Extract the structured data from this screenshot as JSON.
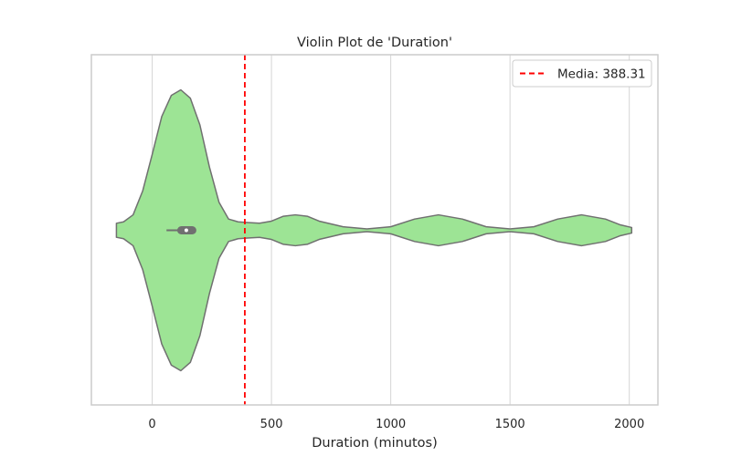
{
  "chart_data": {
    "type": "violin",
    "title": "Violin Plot de 'Duration'",
    "xlabel": "Duration (minutos)",
    "ylabel": "",
    "xlim": [
      -255,
      2120
    ],
    "xticks": [
      0,
      500,
      1000,
      1500,
      2000
    ],
    "xtick_labels": [
      "0",
      "500",
      "1000",
      "1500",
      "2000"
    ],
    "grid": "vertical",
    "legend_position": "top-right",
    "mean": {
      "value": 388.31,
      "label": "Media: 388.31",
      "color": "#ff0000",
      "style": "dashed"
    },
    "violin": {
      "fill_color": "#9de495",
      "edge_color": "#707070",
      "range": [
        -150,
        2010
      ],
      "density_profile": [
        [
          -150,
          0.05
        ],
        [
          -120,
          0.06
        ],
        [
          -80,
          0.11
        ],
        [
          -40,
          0.28
        ],
        [
          0,
          0.54
        ],
        [
          40,
          0.81
        ],
        [
          80,
          0.96
        ],
        [
          120,
          1.0
        ],
        [
          160,
          0.94
        ],
        [
          200,
          0.75
        ],
        [
          240,
          0.45
        ],
        [
          280,
          0.2
        ],
        [
          320,
          0.08
        ],
        [
          360,
          0.06
        ],
        [
          400,
          0.055
        ],
        [
          450,
          0.05
        ],
        [
          500,
          0.065
        ],
        [
          550,
          0.1
        ],
        [
          600,
          0.11
        ],
        [
          650,
          0.1
        ],
        [
          700,
          0.065
        ],
        [
          800,
          0.025
        ],
        [
          900,
          0.01
        ],
        [
          1000,
          0.025
        ],
        [
          1100,
          0.08
        ],
        [
          1200,
          0.11
        ],
        [
          1300,
          0.08
        ],
        [
          1400,
          0.025
        ],
        [
          1500,
          0.01
        ],
        [
          1600,
          0.025
        ],
        [
          1700,
          0.08
        ],
        [
          1800,
          0.11
        ],
        [
          1900,
          0.08
        ],
        [
          1960,
          0.04
        ],
        [
          2010,
          0.02
        ]
      ],
      "whisker": [
        60,
        140
      ],
      "quartiles": [
        105,
        185
      ],
      "median": 143
    },
    "colors": {
      "box": "#707070",
      "grid": "#d6d6d6",
      "frame": "#cccccc"
    }
  }
}
